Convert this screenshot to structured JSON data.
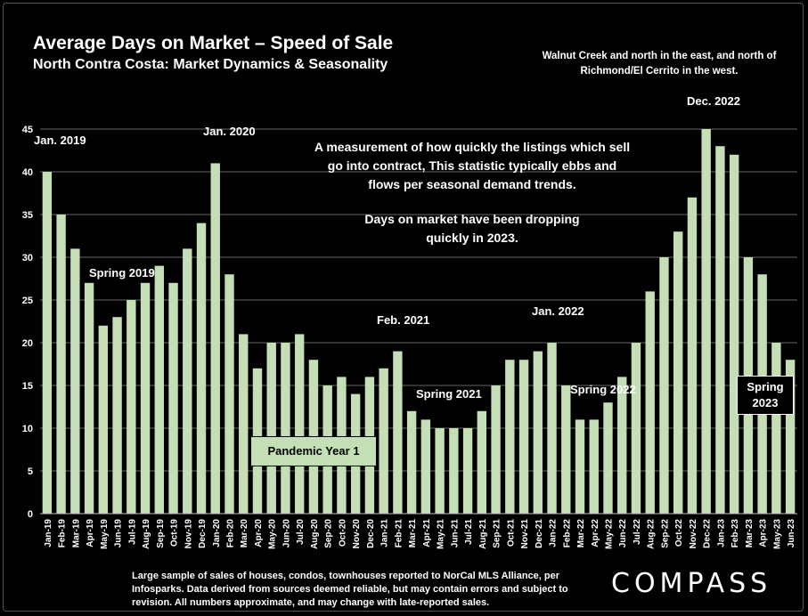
{
  "header": {
    "title": "Average Days on Market – Speed of Sale",
    "subtitle": "North Contra Costa: Market Dynamics & Seasonality",
    "region_note": "Walnut Creek and north in the east, and north of Richmond/El Cerrito in the west."
  },
  "notes": {
    "measurement": "A measurement of how quickly the listings which sell go into contract, This statistic typically ebbs and flows per seasonal demand trends.",
    "trend": "Days on market have been dropping quickly in 2023."
  },
  "annotations": {
    "jan2019": "Jan. 2019",
    "spring2019": "Spring 2019",
    "jan2020": "Jan. 2020",
    "feb2021": "Feb. 2021",
    "spring2021": "Spring 2021",
    "jan2022": "Jan. 2022",
    "spring2022": "Spring 2022",
    "dec2022": "Dec. 2022",
    "pandemic": "Pandemic Year 1",
    "spring2023": "Spring 2023"
  },
  "footnote": "Large sample of sales of houses, condos, townhouses reported to NorCal MLS Alliance, per Infosparks. Data derived from sources deemed reliable, but may contain errors and subject to revision. All numbers approximate, and may change with late-reported sales.",
  "logo": "COMPASS",
  "colors": {
    "bar": "#c4dfb6",
    "background": "#000000",
    "grid": "#666666"
  },
  "chart_data": {
    "type": "bar",
    "categories": [
      "Jan-19",
      "Feb-19",
      "Mar-19",
      "Apr-19",
      "May-19",
      "Jun-19",
      "Jul-19",
      "Aug-19",
      "Sep-19",
      "Oct-19",
      "Nov-19",
      "Dec-19",
      "Jan-20",
      "Feb-20",
      "Mar-20",
      "Apr-20",
      "May-20",
      "Jun-20",
      "Jul-20",
      "Aug-20",
      "Sep-20",
      "Oct-20",
      "Nov-20",
      "Dec-20",
      "Jan-21",
      "Feb-21",
      "Mar-21",
      "Apr-21",
      "May-21",
      "Jun-21",
      "Jul-21",
      "Aug-21",
      "Sep-21",
      "Oct-21",
      "Nov-21",
      "Dec-21",
      "Jan-22",
      "Feb-22",
      "Mar-22",
      "Apr-22",
      "May-22",
      "Jun-22",
      "Jul-22",
      "Aug-22",
      "Sep-22",
      "Oct-22",
      "Nov-22",
      "Dec-22",
      "Jan-23",
      "Feb-23",
      "Mar-23",
      "Apr-23",
      "May-23",
      "Jun-23"
    ],
    "values": [
      40,
      35,
      31,
      27,
      22,
      23,
      25,
      27,
      29,
      27,
      31,
      34,
      41,
      28,
      21,
      17,
      20,
      20,
      21,
      18,
      15,
      16,
      14,
      16,
      17,
      19,
      12,
      11,
      10,
      10,
      10,
      12,
      15,
      18,
      18,
      19,
      20,
      15,
      11,
      11,
      13,
      16,
      20,
      26,
      30,
      33,
      37,
      45,
      43,
      42,
      30,
      28,
      20,
      18
    ],
    "ylim": [
      0,
      45
    ],
    "yticks": [
      0,
      5,
      10,
      15,
      20,
      25,
      30,
      35,
      40,
      45
    ],
    "grid": true
  }
}
